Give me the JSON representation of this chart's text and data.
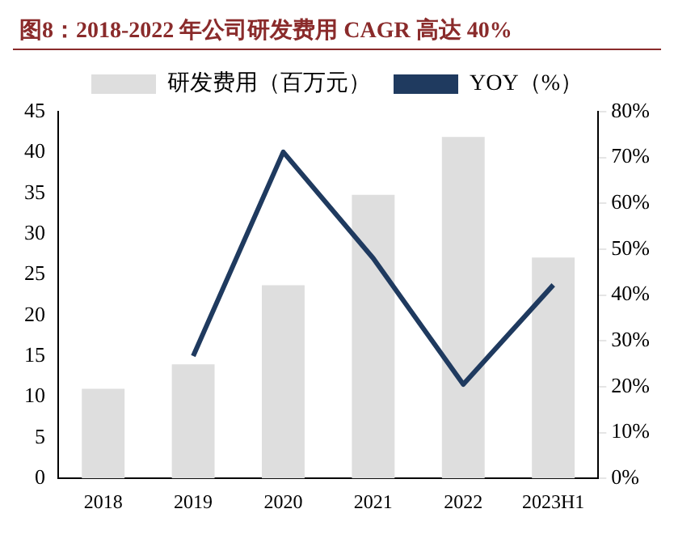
{
  "chart_data": {
    "type": "bar",
    "title": "图8：2018-2022 年公司研发费用 CAGR 高达 40%",
    "categories": [
      "2018",
      "2019",
      "2020",
      "2021",
      "2022",
      "2023H1"
    ],
    "series": [
      {
        "name": "研发费用（百万元）",
        "color": "#dedede",
        "values": [
          11.0,
          14.0,
          23.7,
          34.8,
          41.9,
          27.1
        ]
      },
      {
        "name": "YOY（%）",
        "type": "line",
        "axis": "y2",
        "color": "#1f3a5f",
        "values": [
          null,
          26.7,
          71.2,
          48,
          20.5,
          42.2
        ]
      }
    ],
    "ylim": [
      0,
      45
    ],
    "yticks": [
      0,
      5,
      10,
      15,
      20,
      25,
      30,
      35,
      40,
      45
    ],
    "y2lim": [
      0,
      80
    ],
    "y2ticks": [
      {
        "value": 0,
        "label": "0%"
      },
      {
        "value": 10,
        "label": "10%"
      },
      {
        "value": 20,
        "label": "20%"
      },
      {
        "value": 30,
        "label": "30%"
      },
      {
        "value": 40,
        "label": "40%"
      },
      {
        "value": 50,
        "label": "50%"
      },
      {
        "value": 60,
        "label": "60%"
      },
      {
        "value": 70,
        "label": "70%"
      },
      {
        "value": 80,
        "label": "80%"
      }
    ],
    "grid": false,
    "legend": "top",
    "marker": "none",
    "line_style": "solid"
  }
}
